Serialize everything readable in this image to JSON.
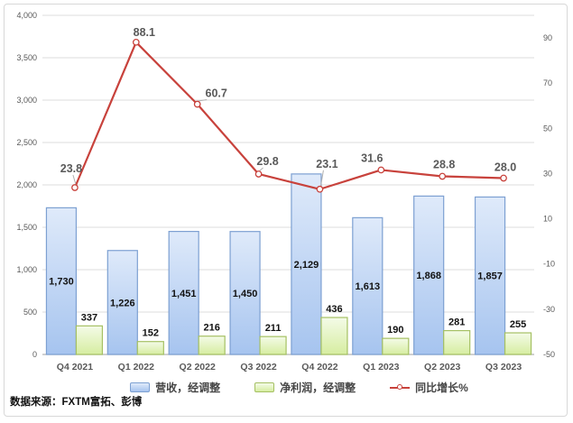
{
  "source_note": "数据来源：FXTM富拓、彭博",
  "colors": {
    "bar_revenue_top": "#dfeafa",
    "bar_revenue_bottom": "#a6c4ef",
    "bar_revenue_border": "#7da0d2",
    "bar_profit_top": "#f4fbe8",
    "bar_profit_bottom": "#d6eda0",
    "bar_profit_border": "#a5c063",
    "line": "#c8423c",
    "grid": "#dcdcdc",
    "axis_line": "#b3b3b3",
    "axis_text": "#595959",
    "bar_label_text": "#111111",
    "line_label_text": "#595959",
    "leader": "#b0b0b0"
  },
  "chart_data": {
    "type": "bar",
    "combo": "bars on left axis + line on right axis",
    "categories": [
      "Q4 2021",
      "Q1 2022",
      "Q2 2022",
      "Q3 2022",
      "Q4 2022",
      "Q1 2023",
      "Q2 2023",
      "Q3 2023"
    ],
    "series": [
      {
        "name": "营收，经调整",
        "chart_type": "bar",
        "axis": "left",
        "values": [
          1730,
          1226,
          1451,
          1450,
          2129,
          1613,
          1868,
          1857
        ],
        "labels": [
          "1,730",
          "1,226",
          "1,451",
          "1,450",
          "2,129",
          "1,613",
          "1,868",
          "1,857"
        ]
      },
      {
        "name": "净利润，经调整",
        "chart_type": "bar",
        "axis": "left",
        "values": [
          337,
          152,
          216,
          211,
          436,
          190,
          281,
          255
        ],
        "labels": [
          "337",
          "152",
          "216",
          "211",
          "436",
          "190",
          "281",
          "255"
        ]
      },
      {
        "name": "同比增长%",
        "chart_type": "line",
        "axis": "right",
        "values": [
          23.8,
          88.1,
          60.7,
          29.8,
          23.1,
          31.6,
          28.8,
          28.0
        ],
        "labels": [
          "23.8",
          "88.1",
          "60.7",
          "29.8",
          "23.1",
          "31.6",
          "28.8",
          "28.0"
        ]
      }
    ],
    "left_axis": {
      "min": 0,
      "max": 4000,
      "step": 500,
      "ticks": [
        "4,000",
        "3,500",
        "3,000",
        "2,500",
        "2,000",
        "1,500",
        "1,000",
        "500",
        "0"
      ]
    },
    "right_axis": {
      "min": -50,
      "max": 100,
      "step": 20,
      "ticks": [
        "90",
        "70",
        "50",
        "30",
        "10",
        "-10",
        "-30",
        "-50"
      ]
    },
    "legend_position": "bottom",
    "grid": true
  }
}
